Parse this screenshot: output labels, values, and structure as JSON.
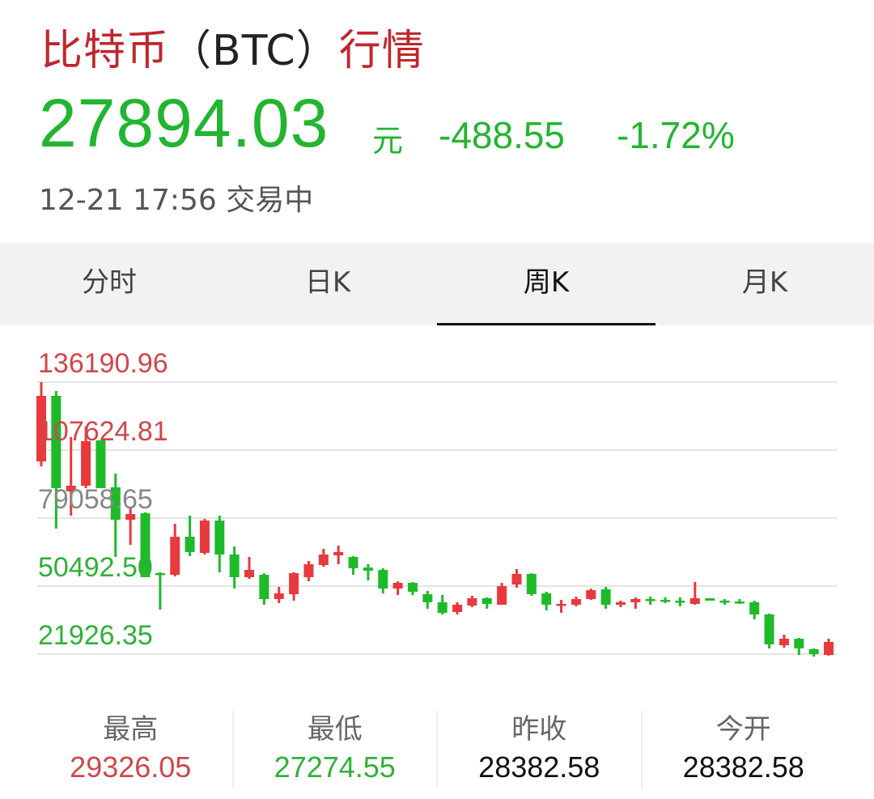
{
  "header": {
    "title_name": "比特币",
    "title_paren_open": "（",
    "title_symbol": "BTC",
    "title_paren_close": "）",
    "title_suffix": "行情",
    "price": "27894.03",
    "unit": "元",
    "change": "-488.55",
    "change_pct": "-1.72%",
    "timestamp": "12-21 17:56",
    "status": "交易中"
  },
  "tabs": [
    {
      "label": "分时",
      "active": false
    },
    {
      "label": "日K",
      "active": false
    },
    {
      "label": "周K",
      "active": true
    },
    {
      "label": "月K",
      "active": false
    }
  ],
  "colors": {
    "up": "#e8393e",
    "down": "#1fba2a",
    "title": "#c0272d",
    "grid": "#e6e6e6"
  },
  "chart_data": {
    "type": "candlestick",
    "period": "周K",
    "ylim": [
      21926.35,
      136190.96
    ],
    "y_ticks": [
      "136190.96",
      "107624.81",
      "79058.65",
      "50492.50",
      "21926.35"
    ],
    "grid": true,
    "fields": [
      "open",
      "high",
      "low",
      "close"
    ],
    "candles": [
      [
        102864,
        136191,
        100823,
        130410
      ],
      [
        130410,
        132450,
        74638,
        91641
      ],
      [
        90281,
        113066,
        80079,
        92662
      ],
      [
        92662,
        117487,
        91641,
        111366
      ],
      [
        111706,
        111706,
        91641,
        91641
      ],
      [
        91982,
        97763,
        62735,
        78379
      ],
      [
        78379,
        83480,
        67836,
        80759
      ],
      [
        81099,
        81439,
        54234,
        54234
      ],
      [
        55934,
        56274,
        40631,
        55254
      ],
      [
        55254,
        76678,
        54574,
        71237
      ],
      [
        71237,
        80079,
        63075,
        64776
      ],
      [
        64436,
        78719,
        63756,
        78038
      ],
      [
        78038,
        80079,
        56274,
        63756
      ],
      [
        63756,
        67156,
        49472,
        54234
      ],
      [
        54234,
        62735,
        53554,
        57295
      ],
      [
        55254,
        55934,
        42670,
        45051
      ],
      [
        45051,
        50153,
        43351,
        47432
      ],
      [
        47092,
        56274,
        44371,
        55934
      ],
      [
        54234,
        61035,
        52534,
        59675
      ],
      [
        59335,
        66136,
        58655,
        63756
      ],
      [
        63416,
        67496,
        59675,
        64776
      ],
      [
        62735,
        63075,
        55254,
        57975
      ],
      [
        58315,
        59675,
        52874,
        56954
      ],
      [
        57295,
        57975,
        47432,
        49472
      ],
      [
        49472,
        52534,
        46751,
        51854
      ],
      [
        51854,
        52194,
        46751,
        48112
      ],
      [
        47092,
        48452,
        40970,
        43691
      ],
      [
        43691,
        46751,
        38590,
        39270
      ],
      [
        39610,
        43691,
        38590,
        42670
      ],
      [
        42330,
        46411,
        41650,
        45391
      ],
      [
        45391,
        45731,
        40970,
        43011
      ],
      [
        42670,
        51854,
        42670,
        50492
      ],
      [
        51174,
        57635,
        49812,
        55594
      ],
      [
        55594,
        55934,
        46411,
        47092
      ],
      [
        47432,
        48112,
        40290,
        42670
      ],
      [
        42670,
        44711,
        39270,
        43011
      ],
      [
        42670,
        46071,
        41990,
        45051
      ],
      [
        45051,
        49472,
        44711,
        48792
      ],
      [
        49132,
        50153,
        40970,
        42670
      ],
      [
        42670,
        44371,
        41650,
        43691
      ],
      [
        43691,
        45731,
        40970,
        45051
      ],
      [
        45051,
        46071,
        42670,
        44371
      ],
      [
        44711,
        45731,
        43351,
        44371
      ],
      [
        44371,
        45731,
        41990,
        43691
      ],
      [
        43011,
        52194,
        42670,
        45391
      ],
      [
        45391,
        45391,
        44371,
        44371
      ],
      [
        44371,
        45051,
        42670,
        44031
      ],
      [
        44031,
        45051,
        43011,
        43691
      ],
      [
        43691,
        44371,
        36550,
        38590
      ],
      [
        38590,
        38930,
        24308,
        26008
      ],
      [
        25668,
        30089,
        24648,
        28389
      ],
      [
        28389,
        28729,
        21586,
        24308
      ],
      [
        23968,
        24308,
        20906,
        21926
      ],
      [
        21586,
        28389,
        21246,
        27029
      ]
    ]
  },
  "stats": [
    {
      "label": "最高",
      "value": "29326.05",
      "color": "#d0474b"
    },
    {
      "label": "最低",
      "value": "27274.55",
      "color": "#2fb13a"
    },
    {
      "label": "昨收",
      "value": "28382.58",
      "color": "#111111"
    },
    {
      "label": "今开",
      "value": "28382.58",
      "color": "#111111"
    }
  ]
}
